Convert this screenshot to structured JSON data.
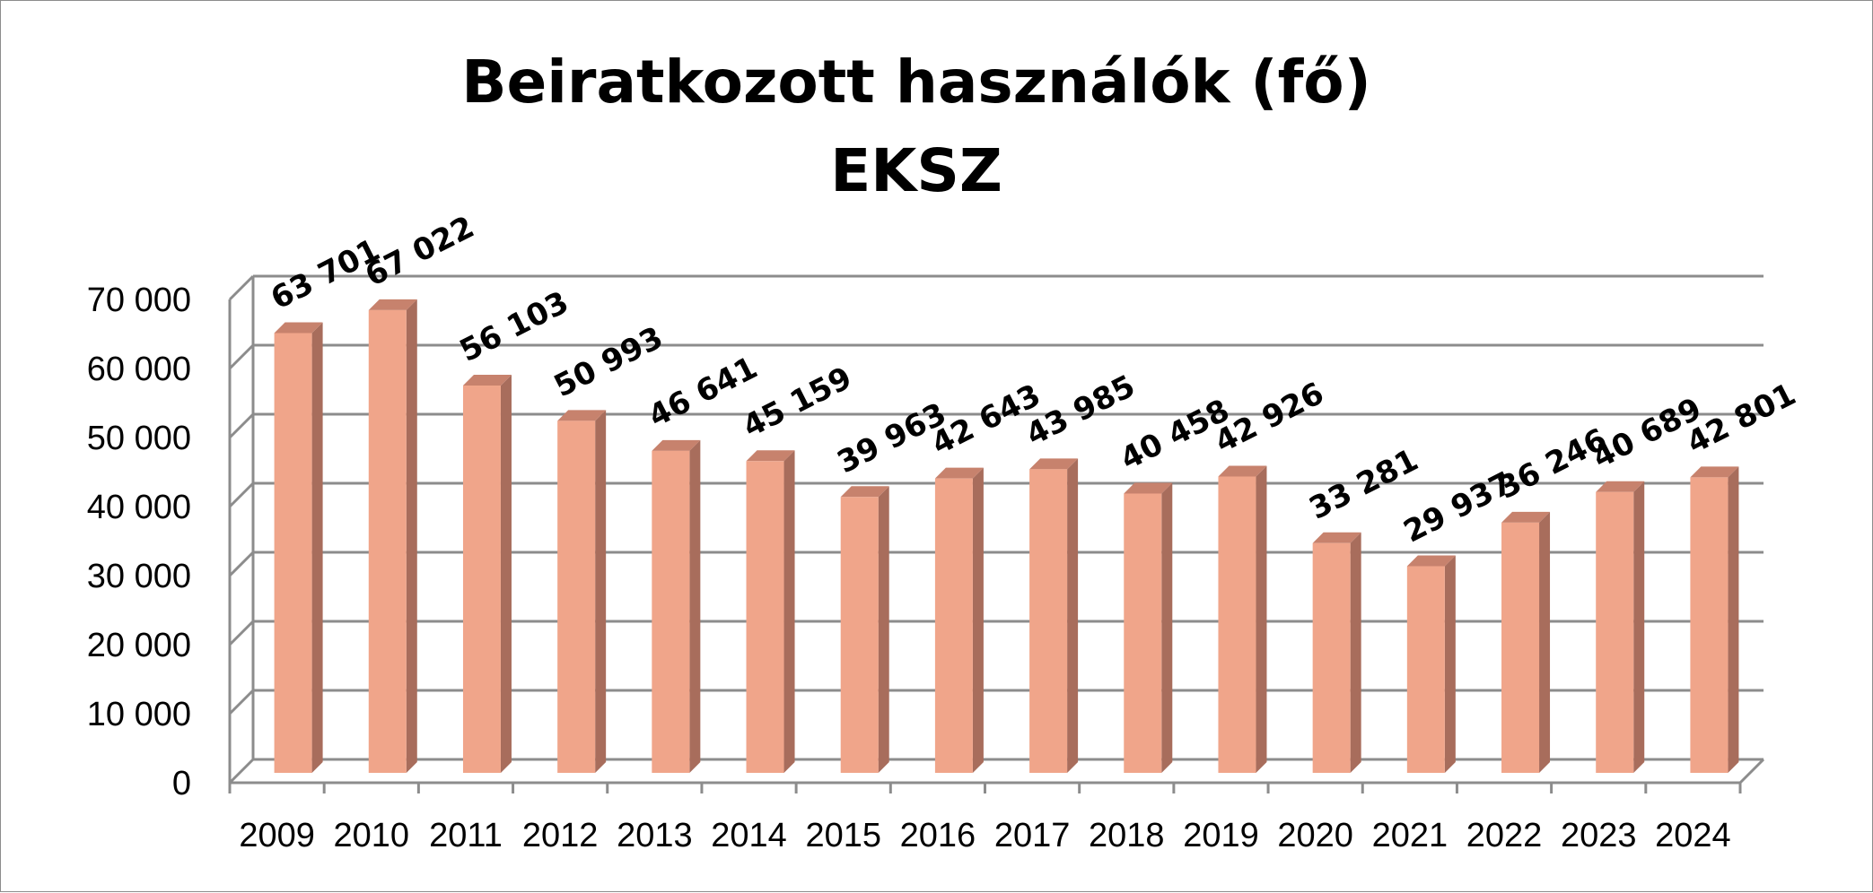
{
  "chart_data": {
    "type": "bar",
    "title": [
      "Beiratkozott használók (fő)",
      "EKSZ"
    ],
    "categories": [
      "2009",
      "2010",
      "2011",
      "2012",
      "2013",
      "2014",
      "2015",
      "2016",
      "2017",
      "2018",
      "2019",
      "2020",
      "2021",
      "2022",
      "2023",
      "2024"
    ],
    "values": [
      63701,
      67022,
      56103,
      50993,
      46641,
      45159,
      39963,
      42643,
      43985,
      40458,
      42926,
      33281,
      29937,
      36246,
      40689,
      42801
    ],
    "data_labels": [
      "63 701",
      "67 022",
      "56 103",
      "50 993",
      "46 641",
      "45 159",
      "39 963",
      "42 643",
      "43 985",
      "40 458",
      "42 926",
      "33 281",
      "29 937",
      "36 246",
      "40 689",
      "42 801"
    ],
    "y_ticks": [
      0,
      10000,
      20000,
      30000,
      40000,
      50000,
      60000,
      70000
    ],
    "y_tick_labels": [
      "0",
      "10 000",
      "20 000",
      "30 000",
      "40 000",
      "50 000",
      "60 000",
      "70 000"
    ],
    "ylim": [
      0,
      70000
    ],
    "grid": true,
    "legend": "none",
    "style": "3d-column",
    "colors": {
      "bar_front": "#F0A58A",
      "bar_side": "#A86D5C",
      "bar_top": "#C7826D",
      "grid": "#8c8c8c"
    }
  }
}
